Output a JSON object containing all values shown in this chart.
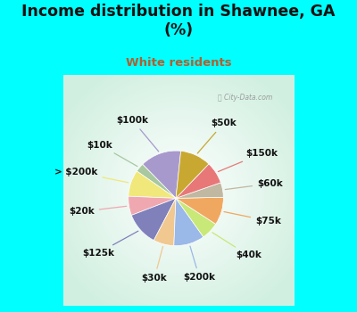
{
  "title": "Income distribution in Shawnee, GA\n(%)",
  "subtitle": "White residents",
  "labels": [
    "$100k",
    "$10k",
    "> $200k",
    "$20k",
    "$125k",
    "$30k",
    "$200k",
    "$40k",
    "$75k",
    "$60k",
    "$150k",
    "$50k"
  ],
  "sizes": [
    14.0,
    3.0,
    9.0,
    6.5,
    11.5,
    7.0,
    10.5,
    6.0,
    9.5,
    5.0,
    7.5,
    10.5
  ],
  "colors": [
    "#a899cc",
    "#a8c8a0",
    "#f0e87a",
    "#f0a8b0",
    "#8080bb",
    "#f0c890",
    "#9ab8e8",
    "#c8e878",
    "#f0a860",
    "#c0b8a0",
    "#e87878",
    "#c8a830"
  ],
  "background_cyan": "#00ffff",
  "background_chart": "#dff0e8",
  "title_color": "#111111",
  "subtitle_color": "#b06030",
  "startangle": 84,
  "label_fontsize": 7.5,
  "title_fontsize": 12.5,
  "subtitle_fontsize": 9.5
}
